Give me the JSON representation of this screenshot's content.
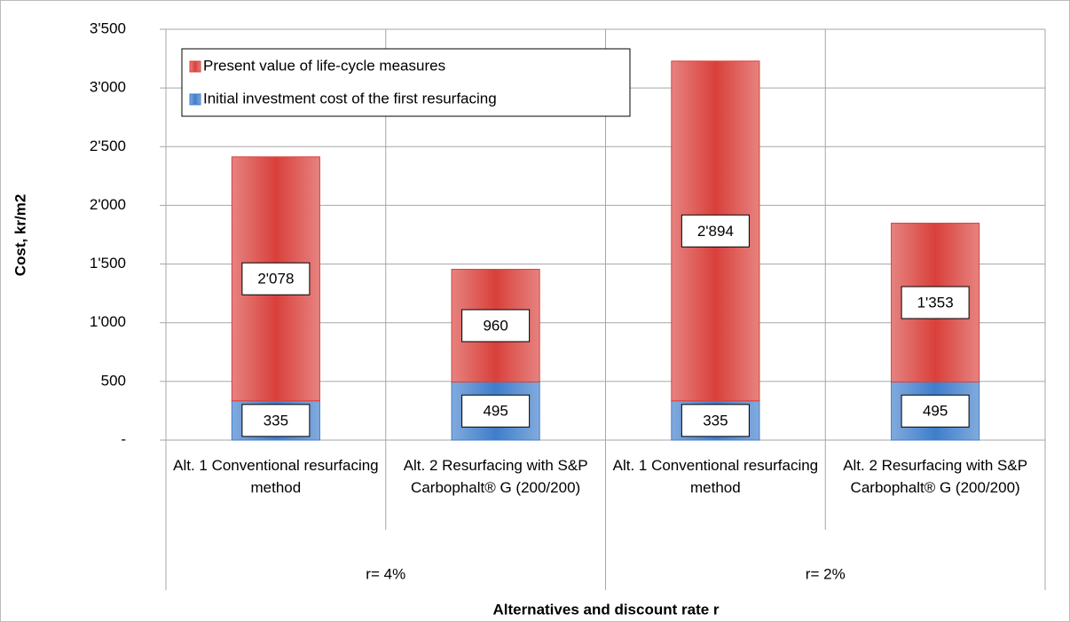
{
  "chart_data": {
    "type": "stacked_bar",
    "y_label": "Cost, kr/m2",
    "x_label": "Alternatives and discount rate r",
    "categories": [
      "Alt. 1 Conventional resurfacing method",
      "Alt. 2 Resurfacing with S&P Carbophalt® G (200/200)",
      "Alt. 1 Conventional resurfacing method",
      "Alt. 2 Resurfacing with S&P Carbophalt® G (200/200)"
    ],
    "group_labels": [
      "r= 4%",
      "r= 2%"
    ],
    "series": [
      {
        "name": "Initial investment cost of the first resurfacing",
        "color": "#3f7dcb",
        "values": [
          335,
          495,
          335,
          495
        ]
      },
      {
        "name": "Present value of life-cycle measures",
        "color": "#d9403b",
        "values": [
          2078,
          960,
          2894,
          1353
        ],
        "value_labels": [
          "2'078",
          "960",
          "2'894",
          "1'353"
        ]
      }
    ],
    "ylim": [
      0,
      3500
    ],
    "yticks": [
      {
        "value": 0,
        "label": "-"
      },
      500,
      {
        "value": 1000,
        "label": "1'000"
      },
      {
        "value": 1500,
        "label": "1'500"
      },
      {
        "value": 2000,
        "label": "2'000"
      },
      {
        "value": 2500,
        "label": "2'500"
      },
      {
        "value": 3000,
        "label": "3'000"
      },
      {
        "value": 3500,
        "label": "3'500"
      }
    ],
    "grid": true,
    "legend": "upper left"
  }
}
